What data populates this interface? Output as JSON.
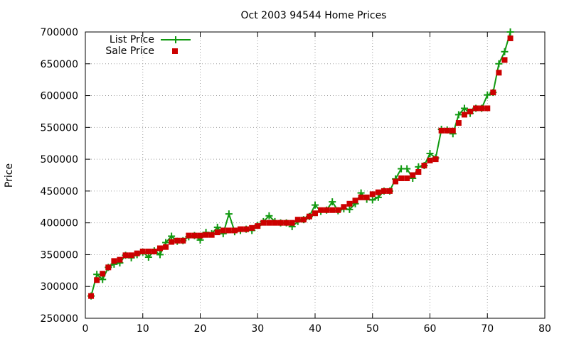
{
  "chart_data": {
    "type": "line",
    "title": "Oct 2003 94544 Home Prices",
    "xlabel": "",
    "ylabel": "Price",
    "xlim": [
      0,
      80
    ],
    "ylim": [
      250000,
      700000
    ],
    "xticks": [
      0,
      10,
      20,
      30,
      40,
      50,
      60,
      70,
      80
    ],
    "yticks": [
      250000,
      300000,
      350000,
      400000,
      450000,
      500000,
      550000,
      600000,
      650000,
      700000
    ],
    "grid": true,
    "legend_position": "top-left",
    "series": [
      {
        "name": "List Price",
        "style": "lines with plus markers",
        "color": "#109910",
        "x": [
          1,
          2,
          3,
          4,
          5,
          6,
          7,
          8,
          9,
          10,
          11,
          12,
          13,
          14,
          15,
          16,
          17,
          18,
          19,
          20,
          21,
          22,
          23,
          24,
          25,
          26,
          27,
          28,
          29,
          30,
          31,
          32,
          33,
          34,
          35,
          36,
          37,
          38,
          39,
          40,
          41,
          42,
          43,
          44,
          45,
          46,
          47,
          48,
          49,
          50,
          51,
          52,
          53,
          54,
          55,
          56,
          57,
          58,
          59,
          60,
          61,
          62,
          63,
          64,
          65,
          66,
          67,
          68,
          69,
          70,
          71,
          72,
          73,
          74
        ],
        "values": [
          285000,
          319000,
          311000,
          330000,
          335000,
          337000,
          349000,
          345000,
          350000,
          354000,
          346000,
          356000,
          350000,
          369000,
          379000,
          371000,
          372000,
          378000,
          380000,
          373000,
          385000,
          383000,
          393000,
          383000,
          414000,
          386000,
          388000,
          390000,
          388000,
          396000,
          402000,
          411000,
          402000,
          400000,
          400000,
          394000,
          402000,
          405000,
          410000,
          428000,
          418000,
          420000,
          433000,
          419000,
          422000,
          421000,
          430000,
          447000,
          437000,
          436000,
          440000,
          450000,
          450000,
          469000,
          485000,
          485000,
          470000,
          488000,
          490000,
          509000,
          502000,
          547000,
          546000,
          540000,
          570000,
          580000,
          572000,
          580000,
          580000,
          601000,
          605000,
          650000,
          669000,
          700000
        ]
      },
      {
        "name": "Sale Price",
        "style": "filled square markers",
        "color": "#cc0000",
        "x": [
          1,
          2,
          3,
          4,
          5,
          6,
          7,
          8,
          9,
          10,
          11,
          12,
          13,
          14,
          15,
          16,
          17,
          18,
          19,
          20,
          21,
          22,
          23,
          24,
          25,
          26,
          27,
          28,
          29,
          30,
          31,
          32,
          33,
          34,
          35,
          36,
          37,
          38,
          39,
          40,
          41,
          42,
          43,
          44,
          45,
          46,
          47,
          48,
          49,
          50,
          51,
          52,
          53,
          54,
          55,
          56,
          57,
          58,
          59,
          60,
          61,
          62,
          63,
          64,
          65,
          66,
          67,
          68,
          69,
          70,
          71,
          72,
          73,
          74
        ],
        "values": [
          285000,
          310000,
          320000,
          330000,
          340000,
          342000,
          349000,
          349000,
          352000,
          355000,
          355000,
          355000,
          360000,
          362000,
          370000,
          372000,
          372000,
          380000,
          380000,
          380000,
          381000,
          381000,
          385000,
          388000,
          388000,
          388000,
          390000,
          390000,
          392000,
          395000,
          400000,
          400000,
          400000,
          400000,
          400000,
          400000,
          405000,
          405000,
          410000,
          415000,
          420000,
          420000,
          420000,
          420000,
          425000,
          430000,
          435000,
          440000,
          440000,
          445000,
          448000,
          450000,
          450000,
          465000,
          470000,
          470000,
          475000,
          480000,
          490000,
          498000,
          500000,
          545000,
          545000,
          545000,
          557000,
          570000,
          575000,
          580000,
          580000,
          580000,
          605000,
          636000,
          656000,
          690000
        ]
      }
    ]
  }
}
